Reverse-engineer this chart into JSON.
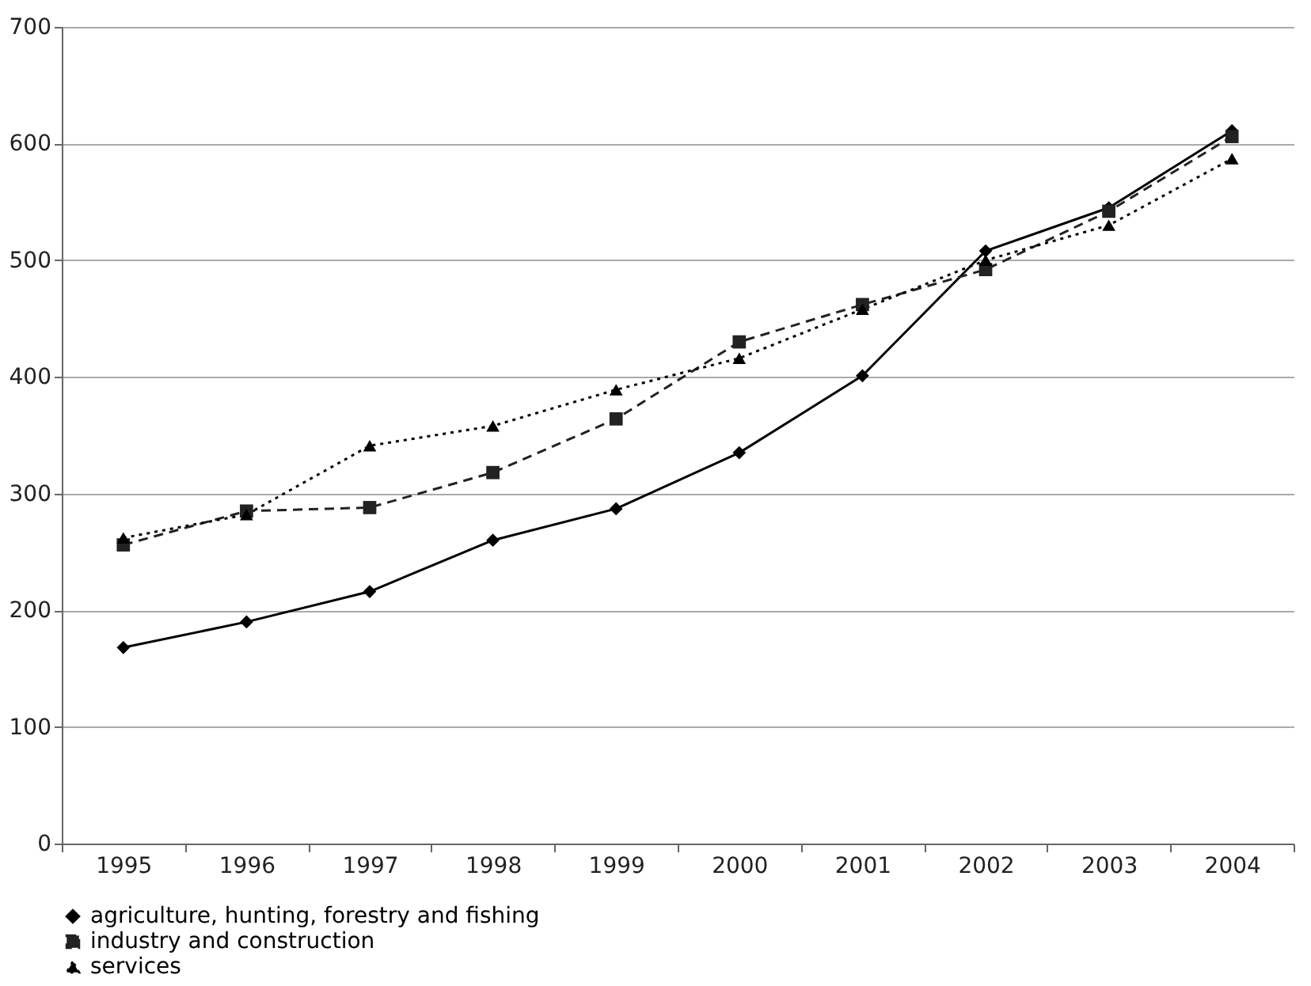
{
  "chart_data": {
    "type": "line",
    "categories": [
      "1995",
      "1996",
      "1997",
      "1998",
      "1999",
      "2000",
      "2001",
      "2002",
      "2003",
      "2004"
    ],
    "series": [
      {
        "name": "agriculture, hunting, forestry and fishing",
        "color": "#000000",
        "marker": "diamond",
        "line_style": "solid",
        "values": [
          168,
          190,
          216,
          260,
          287,
          335,
          401,
          508,
          545,
          611
        ]
      },
      {
        "name": "industry and construction",
        "color": "#222222",
        "marker": "square",
        "line_style": "dashed",
        "values": [
          256,
          285,
          288,
          318,
          364,
          430,
          462,
          492,
          542,
          606
        ]
      },
      {
        "name": "services",
        "color": "#000000",
        "marker": "triangle",
        "line_style": "dotted",
        "values": [
          262,
          282,
          341,
          358,
          389,
          416,
          458,
          500,
          530,
          587
        ]
      }
    ],
    "ylim": [
      0,
      700
    ],
    "yticks": [
      0,
      100,
      200,
      300,
      400,
      500,
      600,
      700
    ],
    "grid": "y",
    "legend": "bottom"
  }
}
